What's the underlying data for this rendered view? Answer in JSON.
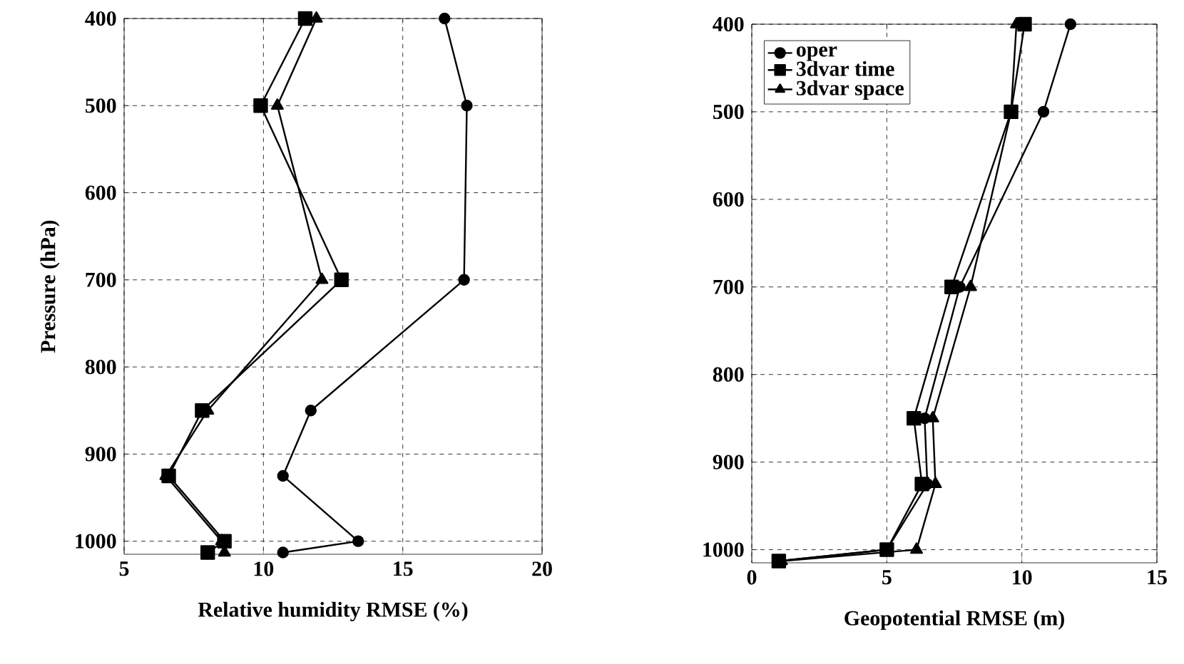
{
  "chart_data": [
    {
      "type": "line",
      "xlabel": "Relative humidity RMSE (%)",
      "ylabel": "Pressure (hPa)",
      "xlim": [
        5,
        20
      ],
      "xticks": [
        5,
        10,
        15,
        20
      ],
      "ylim": [
        1015,
        400
      ],
      "yticks": [
        400,
        500,
        600,
        700,
        800,
        900,
        1000
      ],
      "grid": true,
      "legend": false,
      "line_style": "solid",
      "series": [
        {
          "color": "#000000",
          "marker": "circle",
          "x": [
            16.5,
            17.3,
            17.2,
            11.7,
            10.7,
            13.4,
            10.7
          ],
          "values": [
            400,
            500,
            700,
            850,
            925,
            1000,
            1013
          ]
        },
        {
          "color": "#000000",
          "marker": "square",
          "x": [
            11.5,
            9.9,
            12.8,
            7.8,
            6.6,
            8.6,
            8.0
          ],
          "values": [
            400,
            500,
            700,
            850,
            925,
            1000,
            1013
          ]
        },
        {
          "color": "#000000",
          "marker": "triangle",
          "x": [
            11.9,
            10.5,
            12.1,
            8.0,
            6.5,
            8.5,
            8.6
          ],
          "values": [
            400,
            500,
            700,
            850,
            925,
            1000,
            1013
          ]
        }
      ]
    },
    {
      "type": "line",
      "xlabel": "Geopotential RMSE (m)",
      "xlim": [
        0,
        15
      ],
      "xticks": [
        0,
        5,
        10,
        15
      ],
      "ylim": [
        1015,
        400
      ],
      "yticks": [
        400,
        500,
        600,
        700,
        800,
        900,
        1000
      ],
      "grid": true,
      "legend": "top left",
      "line_style": "solid",
      "series": [
        {
          "name": "oper",
          "color": "#000000",
          "marker": "circle",
          "x": [
            11.8,
            10.8,
            7.7,
            6.4,
            6.5,
            5.0,
            1.0
          ],
          "values": [
            400,
            500,
            700,
            850,
            925,
            1000,
            1013
          ]
        },
        {
          "name": "3dvar time",
          "color": "#000000",
          "marker": "square",
          "x": [
            10.1,
            9.6,
            7.4,
            6.0,
            6.3,
            5.0,
            1.0
          ],
          "values": [
            400,
            500,
            700,
            850,
            925,
            1000,
            1013
          ]
        },
        {
          "name": "3dvar space",
          "color": "#000000",
          "marker": "triangle",
          "x": [
            9.8,
            9.6,
            8.1,
            6.7,
            6.8,
            6.1,
            1.1
          ],
          "values": [
            400,
            500,
            700,
            850,
            925,
            1000,
            1013
          ]
        }
      ]
    }
  ]
}
